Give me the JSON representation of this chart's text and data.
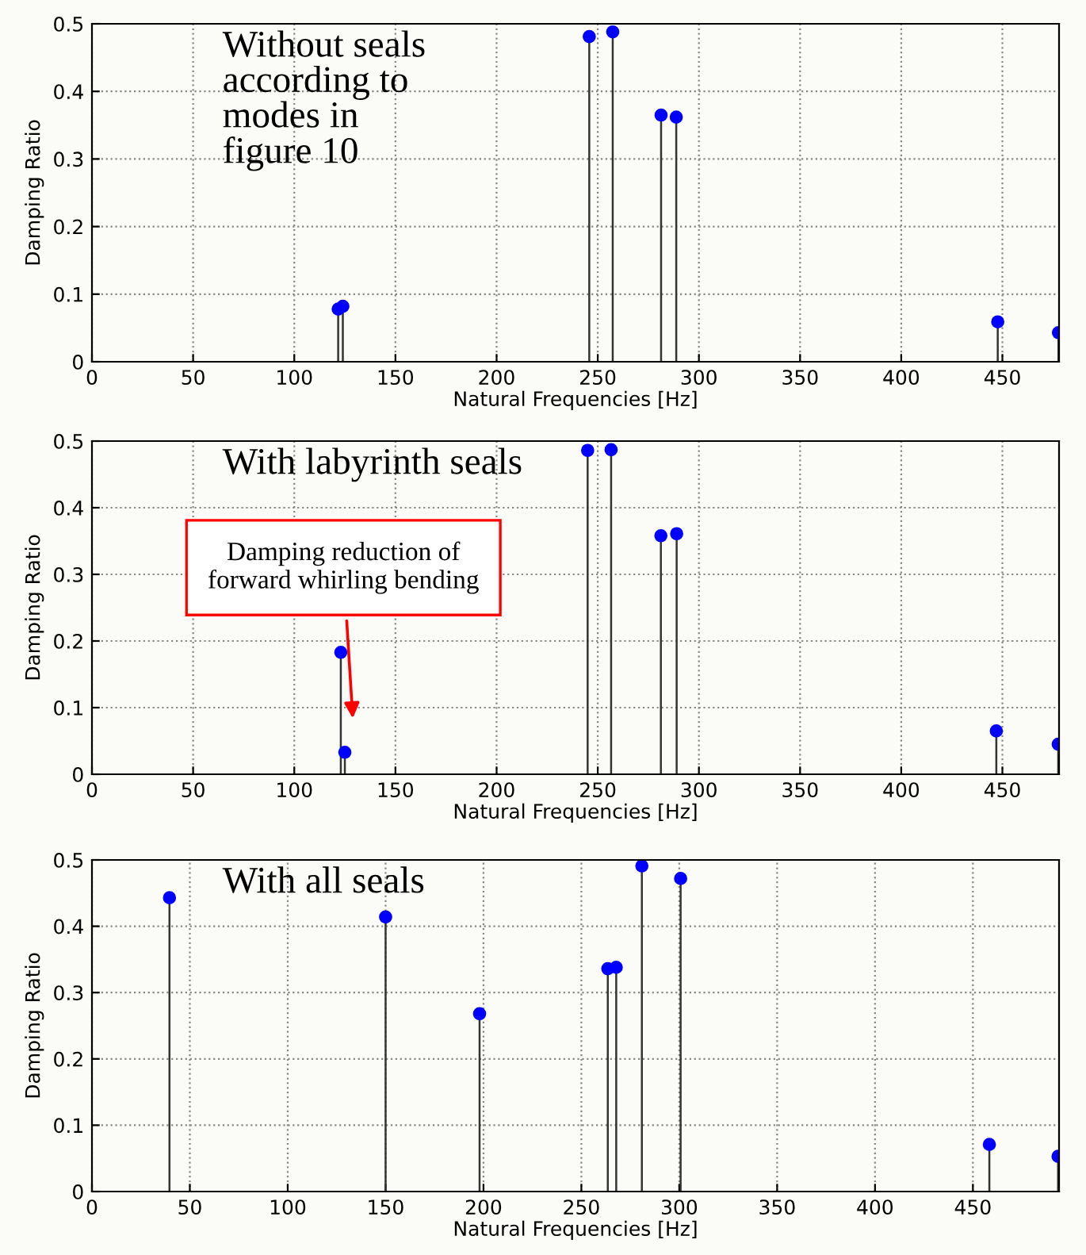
{
  "chart_data": [
    {
      "type": "lollipop",
      "title": "Without seals\naccording to\nmodes in\nfigure 10",
      "xlabel": "Natural Frequencies [Hz]",
      "ylabel": "Damping Ratio",
      "x": [
        121.7,
        124,
        245.8,
        257.4,
        281.3,
        288.8,
        447.7,
        477.7
      ],
      "values": [
        0.078,
        0.082,
        0.481,
        0.488,
        0.365,
        0.362,
        0.059,
        0.043
      ],
      "color": "#0000ff",
      "marker": "circle",
      "xlim": [
        0,
        478
      ],
      "xticks": [
        0,
        50,
        100,
        150,
        200,
        250,
        300,
        350,
        400,
        450
      ],
      "ylim": [
        0,
        0.5
      ],
      "yticks": [
        0,
        0.1,
        0.2,
        0.3,
        0.4,
        0.5
      ],
      "grid": true
    },
    {
      "type": "lollipop",
      "title": "With labyrinth seals",
      "xlabel": "Natural Frequencies [Hz]",
      "ylabel": "Damping Ratio",
      "x": [
        123,
        125,
        245,
        256.6,
        281.2,
        289,
        447,
        477.6
      ],
      "values": [
        0.183,
        0.033,
        0.486,
        0.487,
        0.358,
        0.361,
        0.065,
        0.045
      ],
      "color": "#0000ff",
      "marker": "circle",
      "xlim": [
        0,
        478
      ],
      "xticks": [
        0,
        50,
        100,
        150,
        200,
        250,
        300,
        350,
        400,
        450
      ],
      "ylim": [
        0,
        0.5
      ],
      "yticks": [
        0,
        0.1,
        0.2,
        0.3,
        0.4,
        0.5
      ],
      "grid": true,
      "annotations": [
        "Damping reduction of\nforward whirling bending"
      ]
    },
    {
      "type": "lollipop",
      "title": "With all seals",
      "xlabel": "Natural Frequencies [Hz]",
      "ylabel": "Damping Ratio",
      "x": [
        39.6,
        150,
        198,
        263.5,
        267.8,
        280.9,
        300.7,
        458.4,
        493.5
      ],
      "values": [
        0.443,
        0.414,
        0.268,
        0.336,
        0.338,
        0.491,
        0.472,
        0.071,
        0.053
      ],
      "color": "#0000ff",
      "marker": "circle",
      "xlim": [
        0,
        494
      ],
      "xticks": [
        0,
        50,
        100,
        150,
        200,
        250,
        300,
        350,
        400,
        450
      ],
      "ylim": [
        0,
        0.5
      ],
      "yticks": [
        0,
        0.1,
        0.2,
        0.3,
        0.4,
        0.5
      ],
      "grid": true
    }
  ]
}
